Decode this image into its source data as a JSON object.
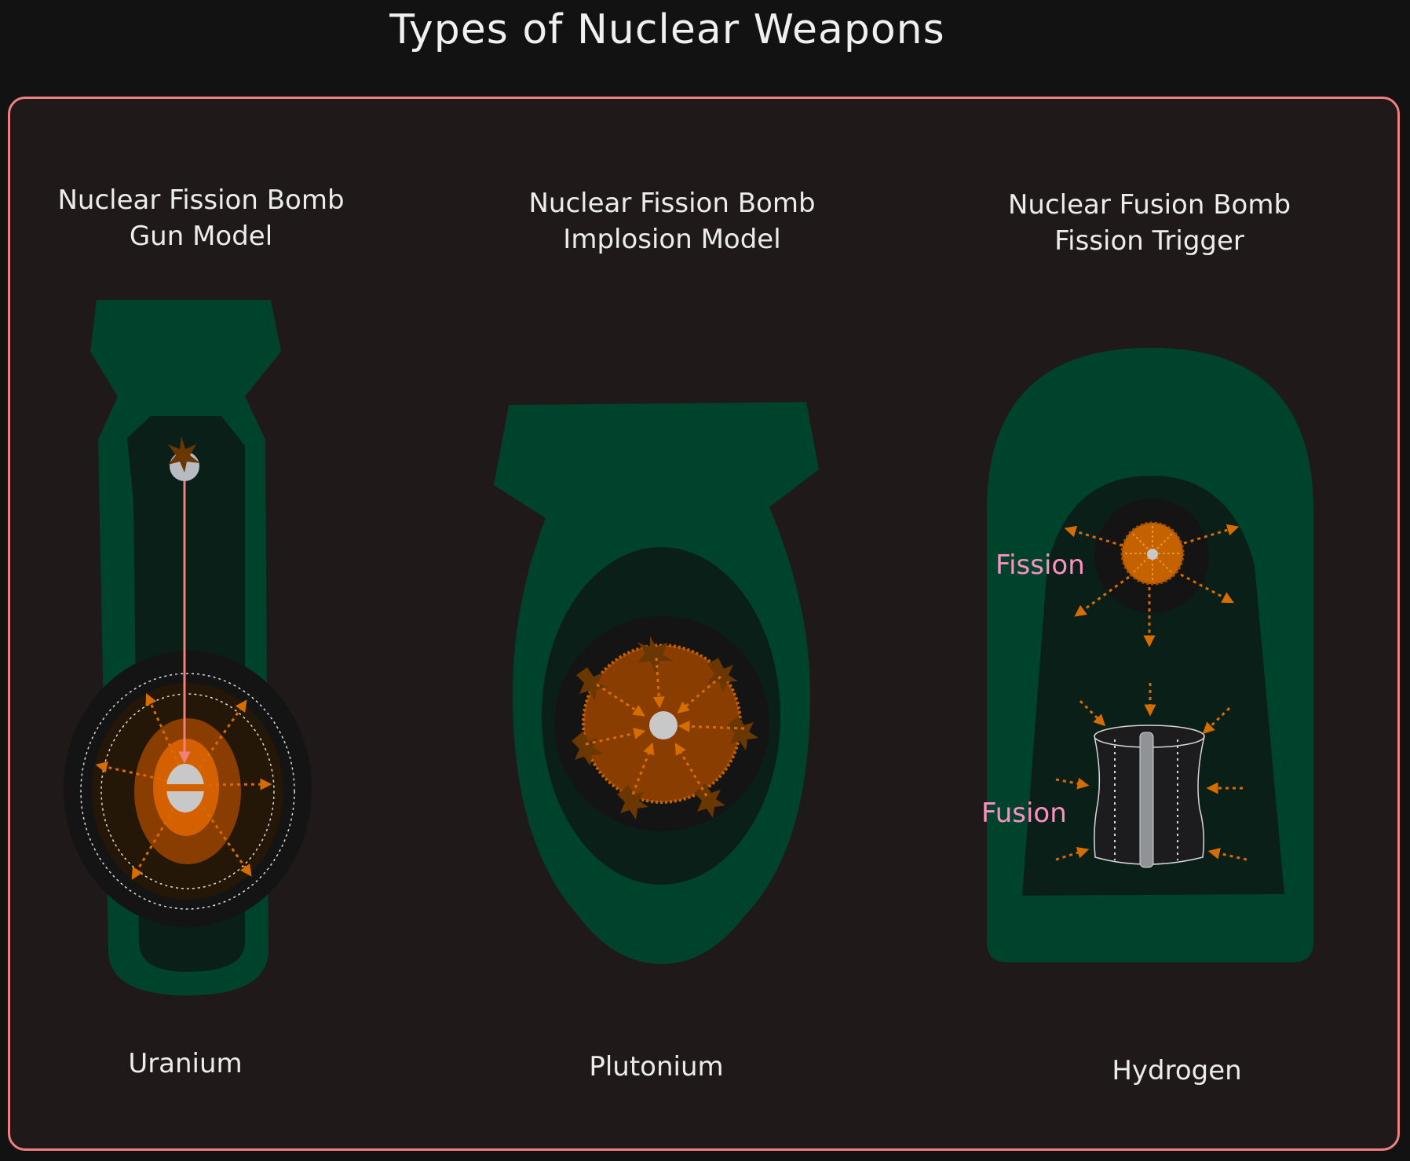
{
  "title": "Types of Nuclear Weapons",
  "colors": {
    "frame_border": "#f08080",
    "frame_fill": "#1f191a",
    "casing": "#00432d",
    "inner": "#0b1f19",
    "core_dark": "#141414",
    "fissile": "#c85a00",
    "arrow": "#d66d00",
    "pink_label": "#ff8fc0"
  },
  "bombs": [
    {
      "heading_line1": "Nuclear Fission Bomb",
      "heading_line2": "Gun Model",
      "caption": "Uranium"
    },
    {
      "heading_line1": "Nuclear Fission Bomb",
      "heading_line2": "Implosion Model",
      "caption": "Plutonium"
    },
    {
      "heading_line1": "Nuclear Fusion Bomb",
      "heading_line2": "Fission Trigger",
      "caption": "Hydrogen"
    }
  ],
  "stage_labels": {
    "fission": "Fission",
    "fusion": "Fusion"
  }
}
